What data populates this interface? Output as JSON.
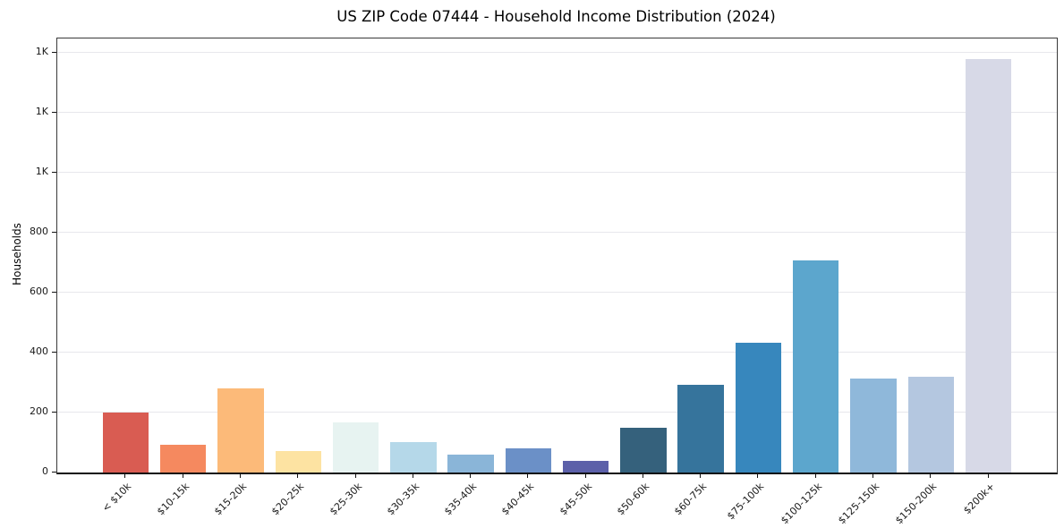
{
  "title": "US ZIP Code 07444 - Household Income Distribution (2024)",
  "chart_data": {
    "type": "bar",
    "title": "US ZIP Code 07444 - Household Income Distribution (2024)",
    "xlabel": "",
    "ylabel": "Households",
    "ylim": [
      0,
      1449
    ],
    "grid": "horizontal",
    "legend": "none",
    "yticks": {
      "values": [
        0,
        200,
        400,
        600,
        800,
        1000,
        1200,
        1400
      ],
      "labels": [
        "0",
        "200",
        "400",
        "600",
        "800",
        "1K",
        "1K",
        "1K"
      ]
    },
    "categories": [
      "< $10k",
      "$10-15k",
      "$15-20k",
      "$20-25k",
      "$25-30k",
      "$30-35k",
      "$35-40k",
      "$40-45k",
      "$45-50k",
      "$50-60k",
      "$60-75k",
      "$75-100k",
      "$100-125k",
      "$125-150k",
      "$150-200k",
      "$200k+"
    ],
    "values": [
      201,
      93,
      280,
      72,
      168,
      101,
      60,
      81,
      39,
      150,
      292,
      433,
      707,
      313,
      320,
      1380
    ],
    "bar_colors": [
      "#d95c52",
      "#f5895f",
      "#fcba79",
      "#fde3a2",
      "#e7f3f1",
      "#b5d8e9",
      "#8ab5d8",
      "#6b90c7",
      "#5c60a9",
      "#35617c",
      "#36749c",
      "#3787bd",
      "#5ca6cd",
      "#8fb8da",
      "#b4c7e0",
      "#d7d9e7"
    ],
    "grid_color": "#e7e7ec",
    "spine_color": "#3a3a3a"
  }
}
